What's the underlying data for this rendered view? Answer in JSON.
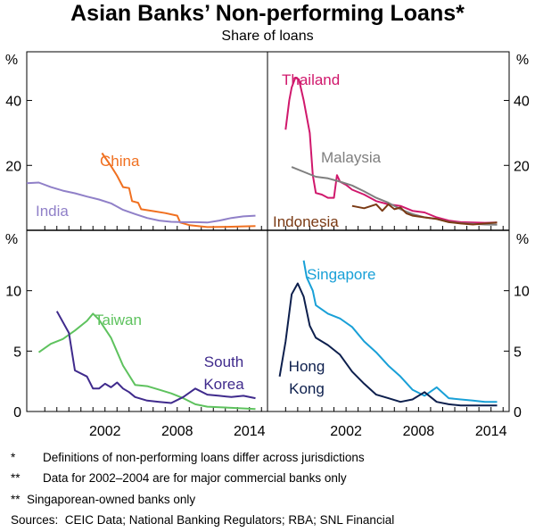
{
  "title": "Asian Banks’ Non-performing Loans*",
  "subtitle": "Share of loans",
  "chart_data": [
    {
      "type": "line",
      "panel": "top-left",
      "ylabel": "%",
      "ylim": [
        0,
        55
      ],
      "yticks": [
        "20",
        "40"
      ],
      "xlim": [
        1996,
        2016
      ],
      "xticks": [],
      "series": [
        {
          "name": "China",
          "color": "#f07020",
          "points": [
            [
              2002.25,
              23.8
            ],
            [
              2003,
              19.8
            ],
            [
              2003.5,
              16.8
            ],
            [
              2004,
              13.3
            ],
            [
              2004.5,
              13.0
            ],
            [
              2004.75,
              9.0
            ],
            [
              2005.25,
              8.5
            ],
            [
              2005.5,
              6.5
            ],
            [
              2006.5,
              5.9
            ],
            [
              2007.5,
              5.3
            ],
            [
              2008.5,
              4.5
            ],
            [
              2008.75,
              2.4
            ],
            [
              2009.5,
              1.6
            ],
            [
              2011,
              1.0
            ],
            [
              2013,
              1.1
            ],
            [
              2015,
              1.3
            ]
          ]
        },
        {
          "name": "India",
          "color": "#9080c8",
          "points": [
            [
              1996,
              14.5
            ],
            [
              1997,
              14.7
            ],
            [
              1998,
              13.3
            ],
            [
              1999,
              12.2
            ],
            [
              2000,
              11.4
            ],
            [
              2001,
              10.4
            ],
            [
              2002,
              9.5
            ],
            [
              2003,
              8.3
            ],
            [
              2004,
              6.3
            ],
            [
              2005,
              5.0
            ],
            [
              2006,
              3.8
            ],
            [
              2007,
              3.0
            ],
            [
              2008,
              2.6
            ],
            [
              2009,
              2.5
            ],
            [
              2010,
              2.5
            ],
            [
              2011,
              2.4
            ],
            [
              2012,
              3.0
            ],
            [
              2013,
              3.8
            ],
            [
              2014,
              4.3
            ],
            [
              2015,
              4.5
            ]
          ]
        }
      ]
    },
    {
      "type": "line",
      "panel": "top-right",
      "ylabel": "%",
      "ylim": [
        0,
        55
      ],
      "yticks": [
        "20",
        "40"
      ],
      "xlim": [
        1996,
        2016
      ],
      "xticks": [],
      "series": [
        {
          "name": "Thailand",
          "color": "#d0186c",
          "points": [
            [
              1997.5,
              31
            ],
            [
              1997.8,
              40
            ],
            [
              1998,
              44
            ],
            [
              1998.3,
              47
            ],
            [
              1998.6,
              46.5
            ],
            [
              1999,
              40
            ],
            [
              1999.5,
              30
            ],
            [
              1999.75,
              17
            ],
            [
              2000,
              11.5
            ],
            [
              2000.5,
              11
            ],
            [
              2001,
              10
            ],
            [
              2001.5,
              10
            ],
            [
              2001.75,
              17
            ],
            [
              2002,
              15
            ],
            [
              2002.5,
              14
            ],
            [
              2003,
              12.5
            ],
            [
              2004,
              11
            ],
            [
              2005,
              9
            ],
            [
              2006,
              8
            ],
            [
              2007,
              7.5
            ],
            [
              2008,
              6
            ],
            [
              2009,
              5.5
            ],
            [
              2010,
              4
            ],
            [
              2011,
              3
            ],
            [
              2012,
              2.5
            ],
            [
              2014,
              2.3
            ],
            [
              2015,
              2.4
            ]
          ]
        },
        {
          "name": "Malaysia",
          "color": "#7f7f7f",
          "points": [
            [
              1998,
              19.5
            ],
            [
              1999,
              18
            ],
            [
              2000,
              16.5
            ],
            [
              2001,
              16
            ],
            [
              2002,
              15
            ],
            [
              2003,
              13.8
            ],
            [
              2004,
              12
            ],
            [
              2005,
              10
            ],
            [
              2006,
              8.5
            ],
            [
              2007,
              6.5
            ],
            [
              2008,
              5
            ],
            [
              2009,
              4
            ],
            [
              2010,
              3.5
            ],
            [
              2011,
              2.6
            ],
            [
              2012,
              2.2
            ],
            [
              2014,
              1.8
            ],
            [
              2015,
              1.7
            ]
          ]
        },
        {
          "name": "Indonesia",
          "color": "#7a3a14",
          "points": [
            [
              2003,
              7.5
            ],
            [
              2004,
              6.8
            ],
            [
              2005,
              8
            ],
            [
              2005.5,
              6
            ],
            [
              2006,
              8
            ],
            [
              2006.5,
              6.5
            ],
            [
              2007,
              7
            ],
            [
              2007.5,
              5.2
            ],
            [
              2008,
              4.5
            ],
            [
              2009,
              4
            ],
            [
              2010,
              3.5
            ],
            [
              2011,
              2.5
            ],
            [
              2012,
              2.1
            ],
            [
              2013,
              1.8
            ],
            [
              2014,
              2.1
            ],
            [
              2015,
              2.4
            ]
          ]
        }
      ]
    },
    {
      "type": "line",
      "panel": "bottom-left",
      "ylabel": "%",
      "ylim": [
        0,
        15
      ],
      "yticks": [
        "0",
        "5",
        "10"
      ],
      "xlim": [
        1996,
        2016
      ],
      "xticks": [
        "2002",
        "2008",
        "2014"
      ],
      "series": [
        {
          "name": "Taiwan",
          "color": "#5ec25e",
          "points": [
            [
              1997,
              4.9
            ],
            [
              1998,
              5.6
            ],
            [
              1999,
              6.0
            ],
            [
              2000,
              6.7
            ],
            [
              2001,
              7.5
            ],
            [
              2001.5,
              8.1
            ],
            [
              2002,
              7.6
            ],
            [
              2003,
              6.1
            ],
            [
              2004,
              3.8
            ],
            [
              2005,
              2.2
            ],
            [
              2006,
              2.1
            ],
            [
              2007,
              1.8
            ],
            [
              2008,
              1.5
            ],
            [
              2009,
              1.1
            ],
            [
              2010,
              0.6
            ],
            [
              2011,
              0.4
            ],
            [
              2013,
              0.3
            ],
            [
              2015,
              0.2
            ]
          ]
        },
        {
          "name": "South Korea",
          "color": "#3f2a8c",
          "points": [
            [
              1998.5,
              8.3
            ],
            [
              1999.5,
              6.5
            ],
            [
              2000,
              3.4
            ],
            [
              2001,
              2.9
            ],
            [
              2001.5,
              1.9
            ],
            [
              2002,
              1.9
            ],
            [
              2002.5,
              2.3
            ],
            [
              2003,
              2.0
            ],
            [
              2003.5,
              2.4
            ],
            [
              2004,
              1.9
            ],
            [
              2004.5,
              1.6
            ],
            [
              2005,
              1.2
            ],
            [
              2006,
              0.9
            ],
            [
              2007,
              0.8
            ],
            [
              2008,
              0.7
            ],
            [
              2009,
              1.2
            ],
            [
              2010,
              1.9
            ],
            [
              2011,
              1.4
            ],
            [
              2012,
              1.3
            ],
            [
              2013,
              1.2
            ],
            [
              2014,
              1.3
            ],
            [
              2015,
              1.1
            ]
          ]
        }
      ]
    },
    {
      "type": "line",
      "panel": "bottom-right",
      "ylabel": "%",
      "ylim": [
        0,
        15
      ],
      "yticks": [
        "0",
        "5",
        "10"
      ],
      "xlim": [
        1996,
        2016
      ],
      "xticks": [
        "2002",
        "2008",
        "2014"
      ],
      "series": [
        {
          "name": "Singapore",
          "color": "#19a0d7",
          "points": [
            [
              1999,
              12.5
            ],
            [
              1999.25,
              11.1
            ],
            [
              1999.75,
              10
            ],
            [
              2000,
              8.8
            ],
            [
              2001,
              8.1
            ],
            [
              2002,
              7.7
            ],
            [
              2003,
              7.0
            ],
            [
              2004,
              5.8
            ],
            [
              2005,
              4.9
            ],
            [
              2006,
              3.8
            ],
            [
              2007,
              2.9
            ],
            [
              2008,
              1.8
            ],
            [
              2009,
              1.3
            ],
            [
              2010,
              2.0
            ],
            [
              2011,
              1.1
            ],
            [
              2012,
              1.0
            ],
            [
              2013,
              0.9
            ],
            [
              2014,
              0.8
            ],
            [
              2015,
              0.8
            ]
          ]
        },
        {
          "name": "Hong Kong",
          "color": "#0d1f4d",
          "points": [
            [
              1997,
              2.9
            ],
            [
              1997.5,
              5.8
            ],
            [
              1998,
              9.7
            ],
            [
              1998.5,
              10.6
            ],
            [
              1999,
              9.5
            ],
            [
              1999.5,
              7.1
            ],
            [
              2000,
              6.1
            ],
            [
              2001,
              5.5
            ],
            [
              2002,
              4.7
            ],
            [
              2003,
              3.3
            ],
            [
              2004,
              2.3
            ],
            [
              2005,
              1.4
            ],
            [
              2006,
              1.1
            ],
            [
              2007,
              0.8
            ],
            [
              2008,
              1.0
            ],
            [
              2009,
              1.6
            ],
            [
              2010,
              0.8
            ],
            [
              2011,
              0.6
            ],
            [
              2012,
              0.5
            ],
            [
              2013,
              0.5
            ],
            [
              2014,
              0.5
            ],
            [
              2015,
              0.5
            ]
          ]
        }
      ]
    }
  ],
  "labels": {
    "china": "China",
    "india": "India",
    "thailand": "Thailand",
    "malaysia": "Malaysia",
    "indonesia": "Indonesia",
    "taiwan": "Taiwan",
    "south": "South",
    "korea": "Korea",
    "singapore": "Singapore",
    "hong": "Hong",
    "kong": "Kong"
  },
  "notes": {
    "note1_mark": "*",
    "note1_text": "Definitions of non-performing loans differ across jurisdictions",
    "note2_mark": "**",
    "note2_text": "Data for 2002–2004 are for major commercial banks only",
    "note3_mark": "**",
    "note3_text": "Singaporean-owned banks only",
    "sources": "Sources:  CEIC Data; National Banking Regulators; RBA; SNL Financial"
  }
}
